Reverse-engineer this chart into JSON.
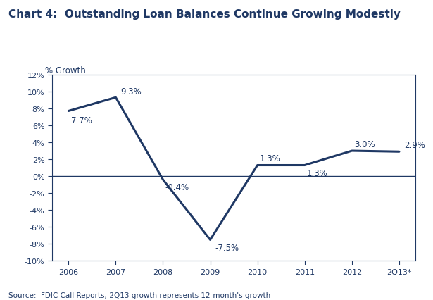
{
  "title": "Chart 4:  Outstanding Loan Balances Continue Growing Modestly",
  "ylabel": "% Growth",
  "source": "Source:  FDIC Call Reports; 2Q13 growth represents 12-month's growth",
  "categories": [
    "2006",
    "2007",
    "2008",
    "2009",
    "2010",
    "2011",
    "2012",
    "2Q13*"
  ],
  "values": [
    7.7,
    9.3,
    -0.4,
    -7.5,
    1.3,
    1.3,
    3.0,
    2.9
  ],
  "labels": [
    "7.7%",
    "9.3%",
    "-0.4%",
    "-7.5%",
    "1.3%",
    "1.3%",
    "3.0%",
    "2.9%"
  ],
  "label_offsets_x": [
    0.05,
    0.1,
    0.05,
    0.1,
    0.05,
    0.05,
    0.05,
    0.1
  ],
  "label_offsets_y": [
    -1.1,
    0.7,
    -0.9,
    -0.9,
    0.8,
    -0.9,
    0.8,
    0.8
  ],
  "line_color": "#1F3864",
  "line_width": 2.2,
  "ylim": [
    -10,
    12
  ],
  "yticks": [
    -10,
    -8,
    -6,
    -4,
    -2,
    0,
    2,
    4,
    6,
    8,
    10,
    12
  ],
  "ytick_labels": [
    "-10%",
    "-8%",
    "-6%",
    "-4%",
    "-2%",
    "0%",
    "2%",
    "4%",
    "6%",
    "8%",
    "10%",
    "12%"
  ],
  "title_color": "#1F3864",
  "axis_color": "#1F3864",
  "label_color": "#1F3864",
  "label_fontsize": 8.5,
  "title_fontsize": 11,
  "tick_fontsize": 8,
  "source_fontsize": 7.5,
  "background_color": "#FFFFFF",
  "border_color": "#1F3864"
}
